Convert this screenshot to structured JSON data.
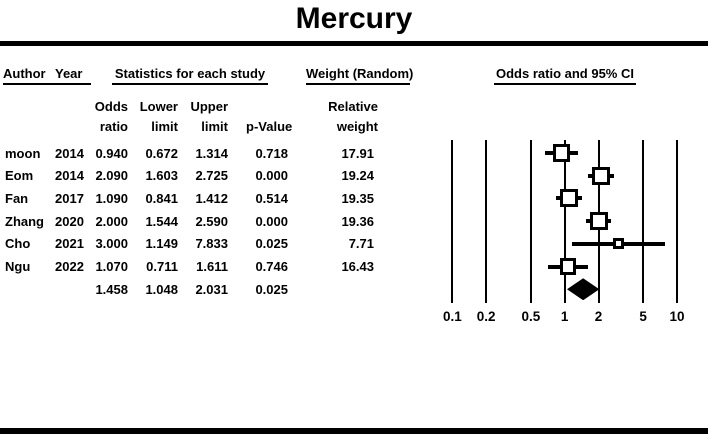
{
  "title": "Mercury",
  "header": {
    "author": "Author",
    "year": "Year",
    "stats": "Statistics for each study",
    "weight": "Weight (Random)",
    "plot": "Odds ratio and 95% CI"
  },
  "subheader": {
    "odds": [
      "Odds",
      "ratio"
    ],
    "lower": [
      "Lower",
      "limit"
    ],
    "upper": [
      "Upper",
      "limit"
    ],
    "pvalue": [
      "",
      "p-Value"
    ],
    "relweight": [
      "Relative",
      "weight"
    ]
  },
  "rows": [
    {
      "author": "moon",
      "year": "2014",
      "or": "0.940",
      "lower": "0.672",
      "upper": "1.314",
      "p": "0.718",
      "weight": "17.91"
    },
    {
      "author": "Eom",
      "year": "2014",
      "or": "2.090",
      "lower": "1.603",
      "upper": "2.725",
      "p": "0.000",
      "weight": "19.24"
    },
    {
      "author": "Fan",
      "year": "2017",
      "or": "1.090",
      "lower": "0.841",
      "upper": "1.412",
      "p": "0.514",
      "weight": "19.35"
    },
    {
      "author": "Zhang",
      "year": "2020",
      "or": "2.000",
      "lower": "1.544",
      "upper": "2.590",
      "p": "0.000",
      "weight": "19.36"
    },
    {
      "author": "Cho",
      "year": "2021",
      "or": "3.000",
      "lower": "1.149",
      "upper": "7.833",
      "p": "0.025",
      "weight": "7.71"
    },
    {
      "author": "Ngu",
      "year": "2022",
      "or": "1.070",
      "lower": "0.711",
      "upper": "1.611",
      "p": "0.746",
      "weight": "16.43"
    }
  ],
  "summary_row": {
    "or": "1.458",
    "lower": "1.048",
    "upper": "2.031",
    "p": "0.025"
  },
  "colors": {
    "ink": "#000000",
    "background": "#ffffff",
    "square_fill": "#ffffff"
  },
  "chart_data": {
    "type": "forest",
    "title": "Mercury",
    "effect_measure": "Odds ratio",
    "model": "Random",
    "x_scale": "log10",
    "x_ticks": [
      0.1,
      0.2,
      0.5,
      1,
      2,
      5,
      10
    ],
    "x_tick_labels": [
      "0.1",
      "0.2",
      "0.5",
      "1",
      "2",
      "5",
      "10"
    ],
    "xlim": [
      0.1,
      10
    ],
    "studies": [
      {
        "author": "moon",
        "year": 2014,
        "or": 0.94,
        "lower": 0.672,
        "upper": 1.314,
        "p_value": 0.718,
        "weight": 17.91
      },
      {
        "author": "Eom",
        "year": 2014,
        "or": 2.09,
        "lower": 1.603,
        "upper": 2.725,
        "p_value": 0.0,
        "weight": 19.24
      },
      {
        "author": "Fan",
        "year": 2017,
        "or": 1.09,
        "lower": 0.841,
        "upper": 1.412,
        "p_value": 0.514,
        "weight": 19.35
      },
      {
        "author": "Zhang",
        "year": 2020,
        "or": 2.0,
        "lower": 1.544,
        "upper": 2.59,
        "p_value": 0.0,
        "weight": 19.36
      },
      {
        "author": "Cho",
        "year": 2021,
        "or": 3.0,
        "lower": 1.149,
        "upper": 7.833,
        "p_value": 0.025,
        "weight": 7.71
      },
      {
        "author": "Ngu",
        "year": 2022,
        "or": 1.07,
        "lower": 0.711,
        "upper": 1.611,
        "p_value": 0.746,
        "weight": 16.43
      }
    ],
    "summary": {
      "or": 1.458,
      "lower": 1.048,
      "upper": 2.031,
      "p_value": 0.025
    }
  }
}
